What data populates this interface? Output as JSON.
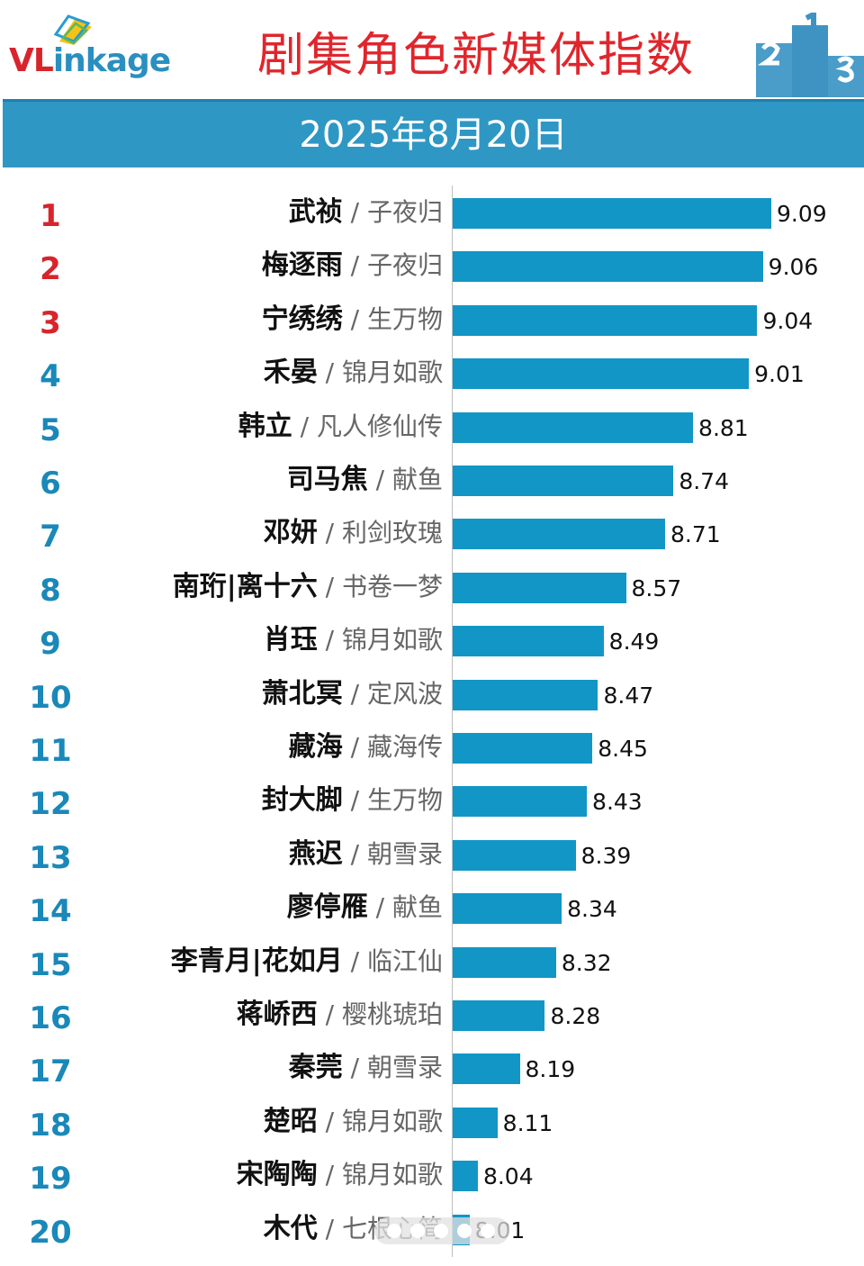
{
  "header": {
    "logo_text_vl": "VL",
    "logo_text_rest": "inkage",
    "title": "剧集角色新媒体指数",
    "date": "2025年8月20日"
  },
  "colors": {
    "title_red": "#e0262c",
    "banner_blue": "#2f97c4",
    "bar_blue": "#1296c6",
    "rank_top3": "#d7252b",
    "rank_rest": "#1a88b8"
  },
  "icons": [
    "logo-mark-icon",
    "podium-icon"
  ],
  "chart_data": {
    "type": "bar",
    "orientation": "horizontal",
    "title": "剧集角色新媒体指数",
    "subtitle": "2025年8月20日",
    "grid": false,
    "rows": [
      {
        "rank": "1",
        "character": "武祯",
        "drama": "子夜归",
        "value": 9.09
      },
      {
        "rank": "2",
        "character": "梅逐雨",
        "drama": "子夜归",
        "value": 9.06
      },
      {
        "rank": "3",
        "character": "宁绣绣",
        "drama": "生万物",
        "value": 9.04
      },
      {
        "rank": "4",
        "character": "禾晏",
        "drama": "锦月如歌",
        "value": 9.01
      },
      {
        "rank": "5",
        "character": "韩立",
        "drama": "凡人修仙传",
        "value": 8.81
      },
      {
        "rank": "6",
        "character": "司马焦",
        "drama": "献鱼",
        "value": 8.74
      },
      {
        "rank": "7",
        "character": "邓妍",
        "drama": "利剑玫瑰",
        "value": 8.71
      },
      {
        "rank": "8",
        "character": "南珩|离十六",
        "drama": "书卷一梦",
        "value": 8.57
      },
      {
        "rank": "9",
        "character": "肖珏",
        "drama": "锦月如歌",
        "value": 8.49
      },
      {
        "rank": "10",
        "character": "萧北冥",
        "drama": "定风波",
        "value": 8.47
      },
      {
        "rank": "11",
        "character": "藏海",
        "drama": "藏海传",
        "value": 8.45
      },
      {
        "rank": "12",
        "character": "封大脚",
        "drama": "生万物",
        "value": 8.43
      },
      {
        "rank": "13",
        "character": "燕迟",
        "drama": "朝雪录",
        "value": 8.39
      },
      {
        "rank": "14",
        "character": "廖停雁",
        "drama": "献鱼",
        "value": 8.34
      },
      {
        "rank": "15",
        "character": "李青月|花如月",
        "drama": "临江仙",
        "value": 8.32
      },
      {
        "rank": "16",
        "character": "蒋峤西",
        "drama": "樱桃琥珀",
        "value": 8.28
      },
      {
        "rank": "17",
        "character": "秦莞",
        "drama": "朝雪录",
        "value": 8.19
      },
      {
        "rank": "18",
        "character": "楚昭",
        "drama": "锦月如歌",
        "value": 8.11
      },
      {
        "rank": "19",
        "character": "宋陶陶",
        "drama": "锦月如歌",
        "value": 8.04
      },
      {
        "rank": "20",
        "character": "木代",
        "drama": "七根心简",
        "value": 8.01
      }
    ],
    "value_labels": [
      "9.09",
      "9.06",
      "9.04",
      "9.01",
      "8.81",
      "8.74",
      "8.71",
      "8.57",
      "8.49",
      "8.47",
      "8.45",
      "8.43",
      "8.39",
      "8.34",
      "8.32",
      "8.28",
      "8.19",
      "8.11",
      "8.04",
      "8.01"
    ],
    "separator": "/",
    "xlim": [
      7.95,
      9.09
    ]
  }
}
